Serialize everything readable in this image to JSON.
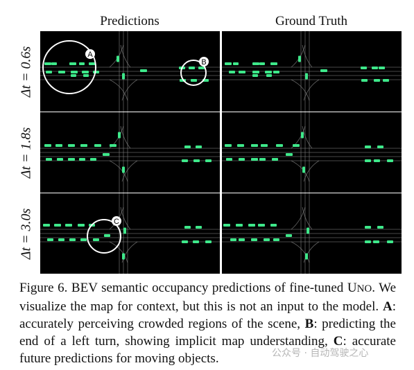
{
  "headers": {
    "left": "Predictions",
    "right": "Ground Truth"
  },
  "rows": [
    {
      "label": "Δt = 0.6s"
    },
    {
      "label": "Δt = 1.8s"
    },
    {
      "label": "Δt = 3.0s"
    }
  ],
  "annotations": [
    {
      "row": 0,
      "letter": "A"
    },
    {
      "row": 0,
      "letter": "B"
    },
    {
      "row": 1,
      "letter": "C"
    }
  ],
  "colors": {
    "panel_bg": "#000000",
    "road": "#8a8a8a",
    "vehicle": "#3ee88a",
    "circle": "#ffffff"
  },
  "caption": {
    "fig": "Figure 6.",
    "text1": "BEV semantic occupancy predictions of fine-tuned",
    "model_u": "U",
    "model_rest": "NO",
    "text2": ". We visualize the map for context, but this is not an input to the model.",
    "a_label": "A",
    "a_text": ": accurately perceiving crowded regions of the scene,",
    "b_label": "B",
    "b_text": ": predicting the end of a left turn, showing implicit map understanding,",
    "c_label": "C",
    "c_text": ": accurate future predictions for moving objects."
  },
  "watermark": "公众号 · 自动驾驶之心"
}
